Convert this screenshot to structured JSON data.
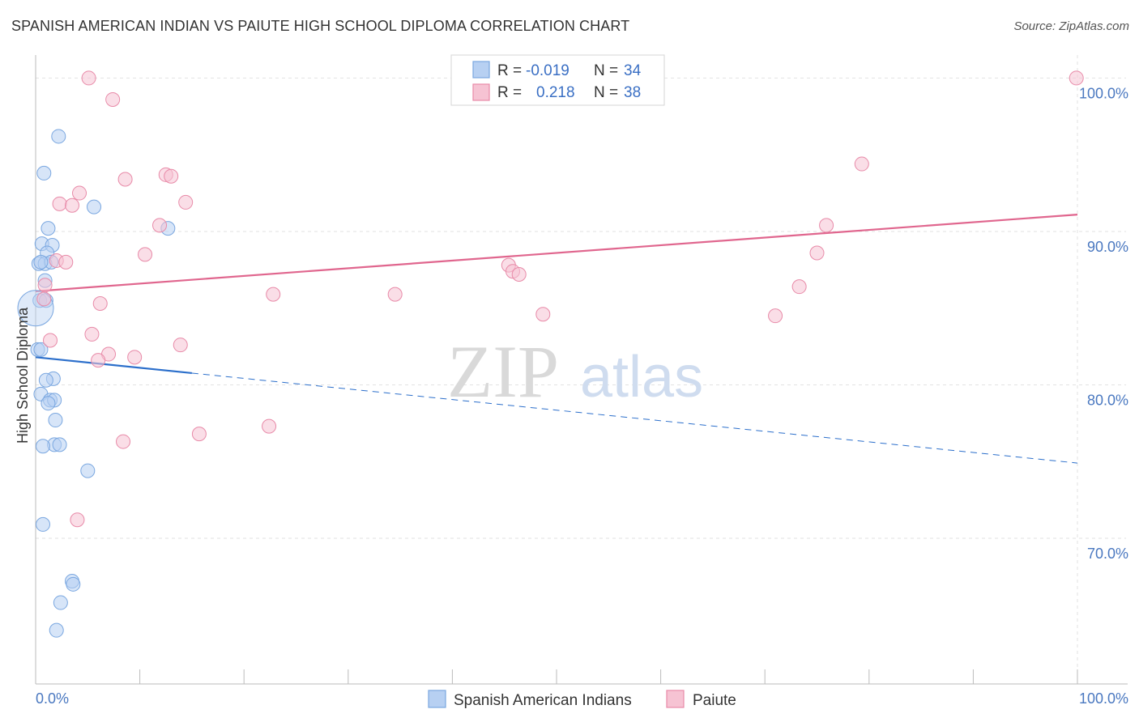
{
  "title": "SPANISH AMERICAN INDIAN VS PAIUTE HIGH SCHOOL DIPLOMA CORRELATION CHART",
  "source": "Source: ZipAtlas.com",
  "watermark": {
    "zip": "ZIP",
    "atlas": "atlas"
  },
  "colors": {
    "blue": "#7aa7e0",
    "blue_fill": "#b7d0f2",
    "blue_line": "#2c6fcb",
    "pink": "#e88aa8",
    "pink_fill": "#f6c3d3",
    "pink_line": "#e0668e"
  },
  "legend": {
    "rows": [
      {
        "r_label": "R =",
        "r_value": "-0.019",
        "n_label": "N =",
        "n_value": "34"
      },
      {
        "r_label": "R =",
        "r_value": "0.218",
        "n_label": "N =",
        "n_value": "38"
      }
    ]
  },
  "bottom_legend": [
    "Spanish American Indians",
    "Paiute"
  ],
  "chart_data": {
    "type": "scatter",
    "title": "SPANISH AMERICAN INDIAN VS PAIUTE HIGH SCHOOL DIPLOMA CORRELATION CHART",
    "xlabel": "",
    "ylabel": "High School Diploma",
    "xlim": [
      0,
      100
    ],
    "ylim": [
      60.5,
      101.5
    ],
    "x_tick_labels": [
      "0.0%",
      "100.0%"
    ],
    "y_ticks": [
      70,
      80,
      90,
      100
    ],
    "y_tick_labels": [
      "70.0%",
      "80.0%",
      "90.0%",
      "100.0%"
    ],
    "grid": true,
    "series": [
      {
        "name": "Spanish American Indians",
        "points": [
          [
            2.2,
            96.2
          ],
          [
            0.8,
            93.8
          ],
          [
            5.6,
            91.6
          ],
          [
            1.2,
            90.2
          ],
          [
            12.7,
            90.2
          ],
          [
            0.6,
            89.2
          ],
          [
            1.6,
            89.1
          ],
          [
            1.1,
            88.6
          ],
          [
            0.3,
            87.9
          ],
          [
            0.9,
            87.9
          ],
          [
            1.5,
            88.0
          ],
          [
            0.9,
            86.8
          ],
          [
            0.4,
            85.5
          ],
          [
            1.0,
            85.5
          ],
          [
            0.0,
            85.0
          ],
          [
            0.2,
            82.3
          ],
          [
            0.5,
            82.3
          ],
          [
            1.7,
            80.4
          ],
          [
            1.0,
            80.3
          ],
          [
            0.5,
            79.4
          ],
          [
            1.4,
            79.0
          ],
          [
            1.8,
            79.0
          ],
          [
            1.2,
            78.8
          ],
          [
            1.9,
            77.7
          ],
          [
            1.8,
            76.1
          ],
          [
            2.3,
            76.1
          ],
          [
            0.7,
            76.0
          ],
          [
            5.0,
            74.4
          ],
          [
            0.7,
            70.9
          ],
          [
            3.5,
            67.2
          ],
          [
            3.6,
            67.0
          ],
          [
            2.4,
            65.8
          ],
          [
            2.0,
            64.0
          ],
          [
            0.5,
            88.0
          ]
        ]
      },
      {
        "name": "Paiute",
        "points": [
          [
            5.1,
            100.0
          ],
          [
            7.4,
            98.6
          ],
          [
            99.9,
            100.0
          ],
          [
            79.3,
            94.4
          ],
          [
            12.5,
            93.7
          ],
          [
            13.0,
            93.6
          ],
          [
            8.6,
            93.4
          ],
          [
            4.2,
            92.5
          ],
          [
            2.3,
            91.8
          ],
          [
            3.5,
            91.7
          ],
          [
            14.4,
            91.9
          ],
          [
            11.9,
            90.4
          ],
          [
            75.9,
            90.4
          ],
          [
            10.5,
            88.5
          ],
          [
            75.0,
            88.6
          ],
          [
            2.0,
            88.1
          ],
          [
            2.9,
            88.0
          ],
          [
            45.4,
            87.8
          ],
          [
            45.8,
            87.4
          ],
          [
            46.4,
            87.2
          ],
          [
            0.9,
            86.5
          ],
          [
            73.3,
            86.4
          ],
          [
            22.8,
            85.9
          ],
          [
            34.5,
            85.9
          ],
          [
            0.8,
            85.6
          ],
          [
            6.2,
            85.3
          ],
          [
            48.7,
            84.6
          ],
          [
            71.0,
            84.5
          ],
          [
            5.4,
            83.3
          ],
          [
            1.4,
            82.9
          ],
          [
            13.9,
            82.6
          ],
          [
            7.0,
            82.0
          ],
          [
            9.5,
            81.8
          ],
          [
            6.0,
            81.6
          ],
          [
            8.4,
            76.3
          ],
          [
            15.7,
            76.8
          ],
          [
            22.4,
            77.3
          ],
          [
            4.0,
            71.2
          ]
        ]
      }
    ],
    "trend_lines": [
      {
        "series": "Spanish American Indians",
        "solid_x": [
          0,
          15
        ],
        "dashed_x": [
          15,
          100
        ],
        "y_at_x0": 81.8,
        "y_at_x100": 74.9
      },
      {
        "series": "Paiute",
        "x": [
          0,
          100
        ],
        "y_at_x0": 86.1,
        "y_at_x100": 91.1
      }
    ]
  }
}
